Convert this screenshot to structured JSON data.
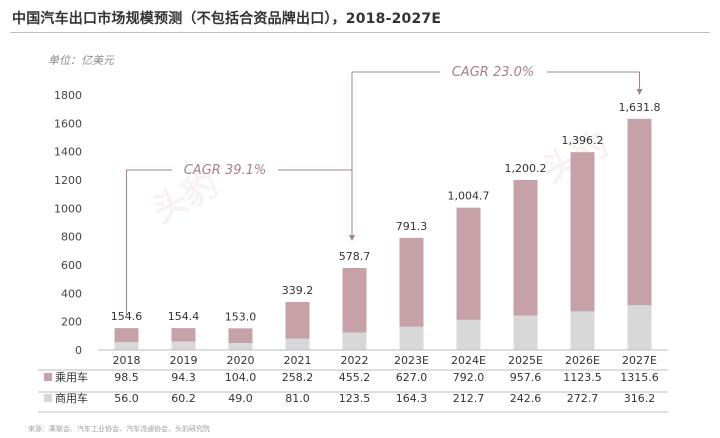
{
  "title": "中国汽车出口市场规模预测（不包括合资品牌出口），2018-2027E",
  "unit_label": "单位：亿美元",
  "source": "来源：乘联会、汽车工业协会、汽车流通协会、头豹研究院",
  "colors": {
    "passenger": "#c7a1a8",
    "commercial": "#d8d8d8",
    "axis": "#bdbdbd",
    "annotation": "#a5808a"
  },
  "chart_data": {
    "type": "bar",
    "stacked": true,
    "categories": [
      "2018",
      "2019",
      "2020",
      "2021",
      "2022",
      "2023E",
      "2024E",
      "2025E",
      "2026E",
      "2027E"
    ],
    "series": [
      {
        "name": "乘用车",
        "values": [
          98.5,
          94.3,
          104.0,
          258.2,
          455.2,
          627.0,
          792.0,
          957.6,
          1123.5,
          1315.6
        ]
      },
      {
        "name": "商用车",
        "values": [
          56.0,
          60.2,
          49.0,
          81.0,
          123.5,
          164.3,
          212.7,
          242.6,
          272.7,
          316.2
        ]
      }
    ],
    "totals": [
      "154.6",
      "154.4",
      "153.0",
      "339.2",
      "578.7",
      "791.3",
      "1,004.7",
      "1,200.2",
      "1,396.2",
      "1,631.8"
    ],
    "table_values": {
      "乘用车": [
        "98.5",
        "94.3",
        "104.0",
        "258.2",
        "455.2",
        "627.0",
        "792.0",
        "957.6",
        "1123.5",
        "1315.6"
      ],
      "商用车": [
        "56.0",
        "60.2",
        "49.0",
        "81.0",
        "123.5",
        "164.3",
        "212.7",
        "242.6",
        "272.7",
        "316.2"
      ]
    },
    "yticks": [
      "0",
      "200",
      "400",
      "600",
      "800",
      "1000",
      "1200",
      "1400",
      "1600",
      "1800"
    ],
    "ylim": [
      0,
      1800
    ],
    "annotations": [
      {
        "text": "CAGR 39.1%",
        "from": "2018",
        "to": "2022"
      },
      {
        "text": "CAGR 23.0%",
        "from": "2022",
        "to": "2027E"
      }
    ],
    "grid": false,
    "legend": "table-left"
  }
}
